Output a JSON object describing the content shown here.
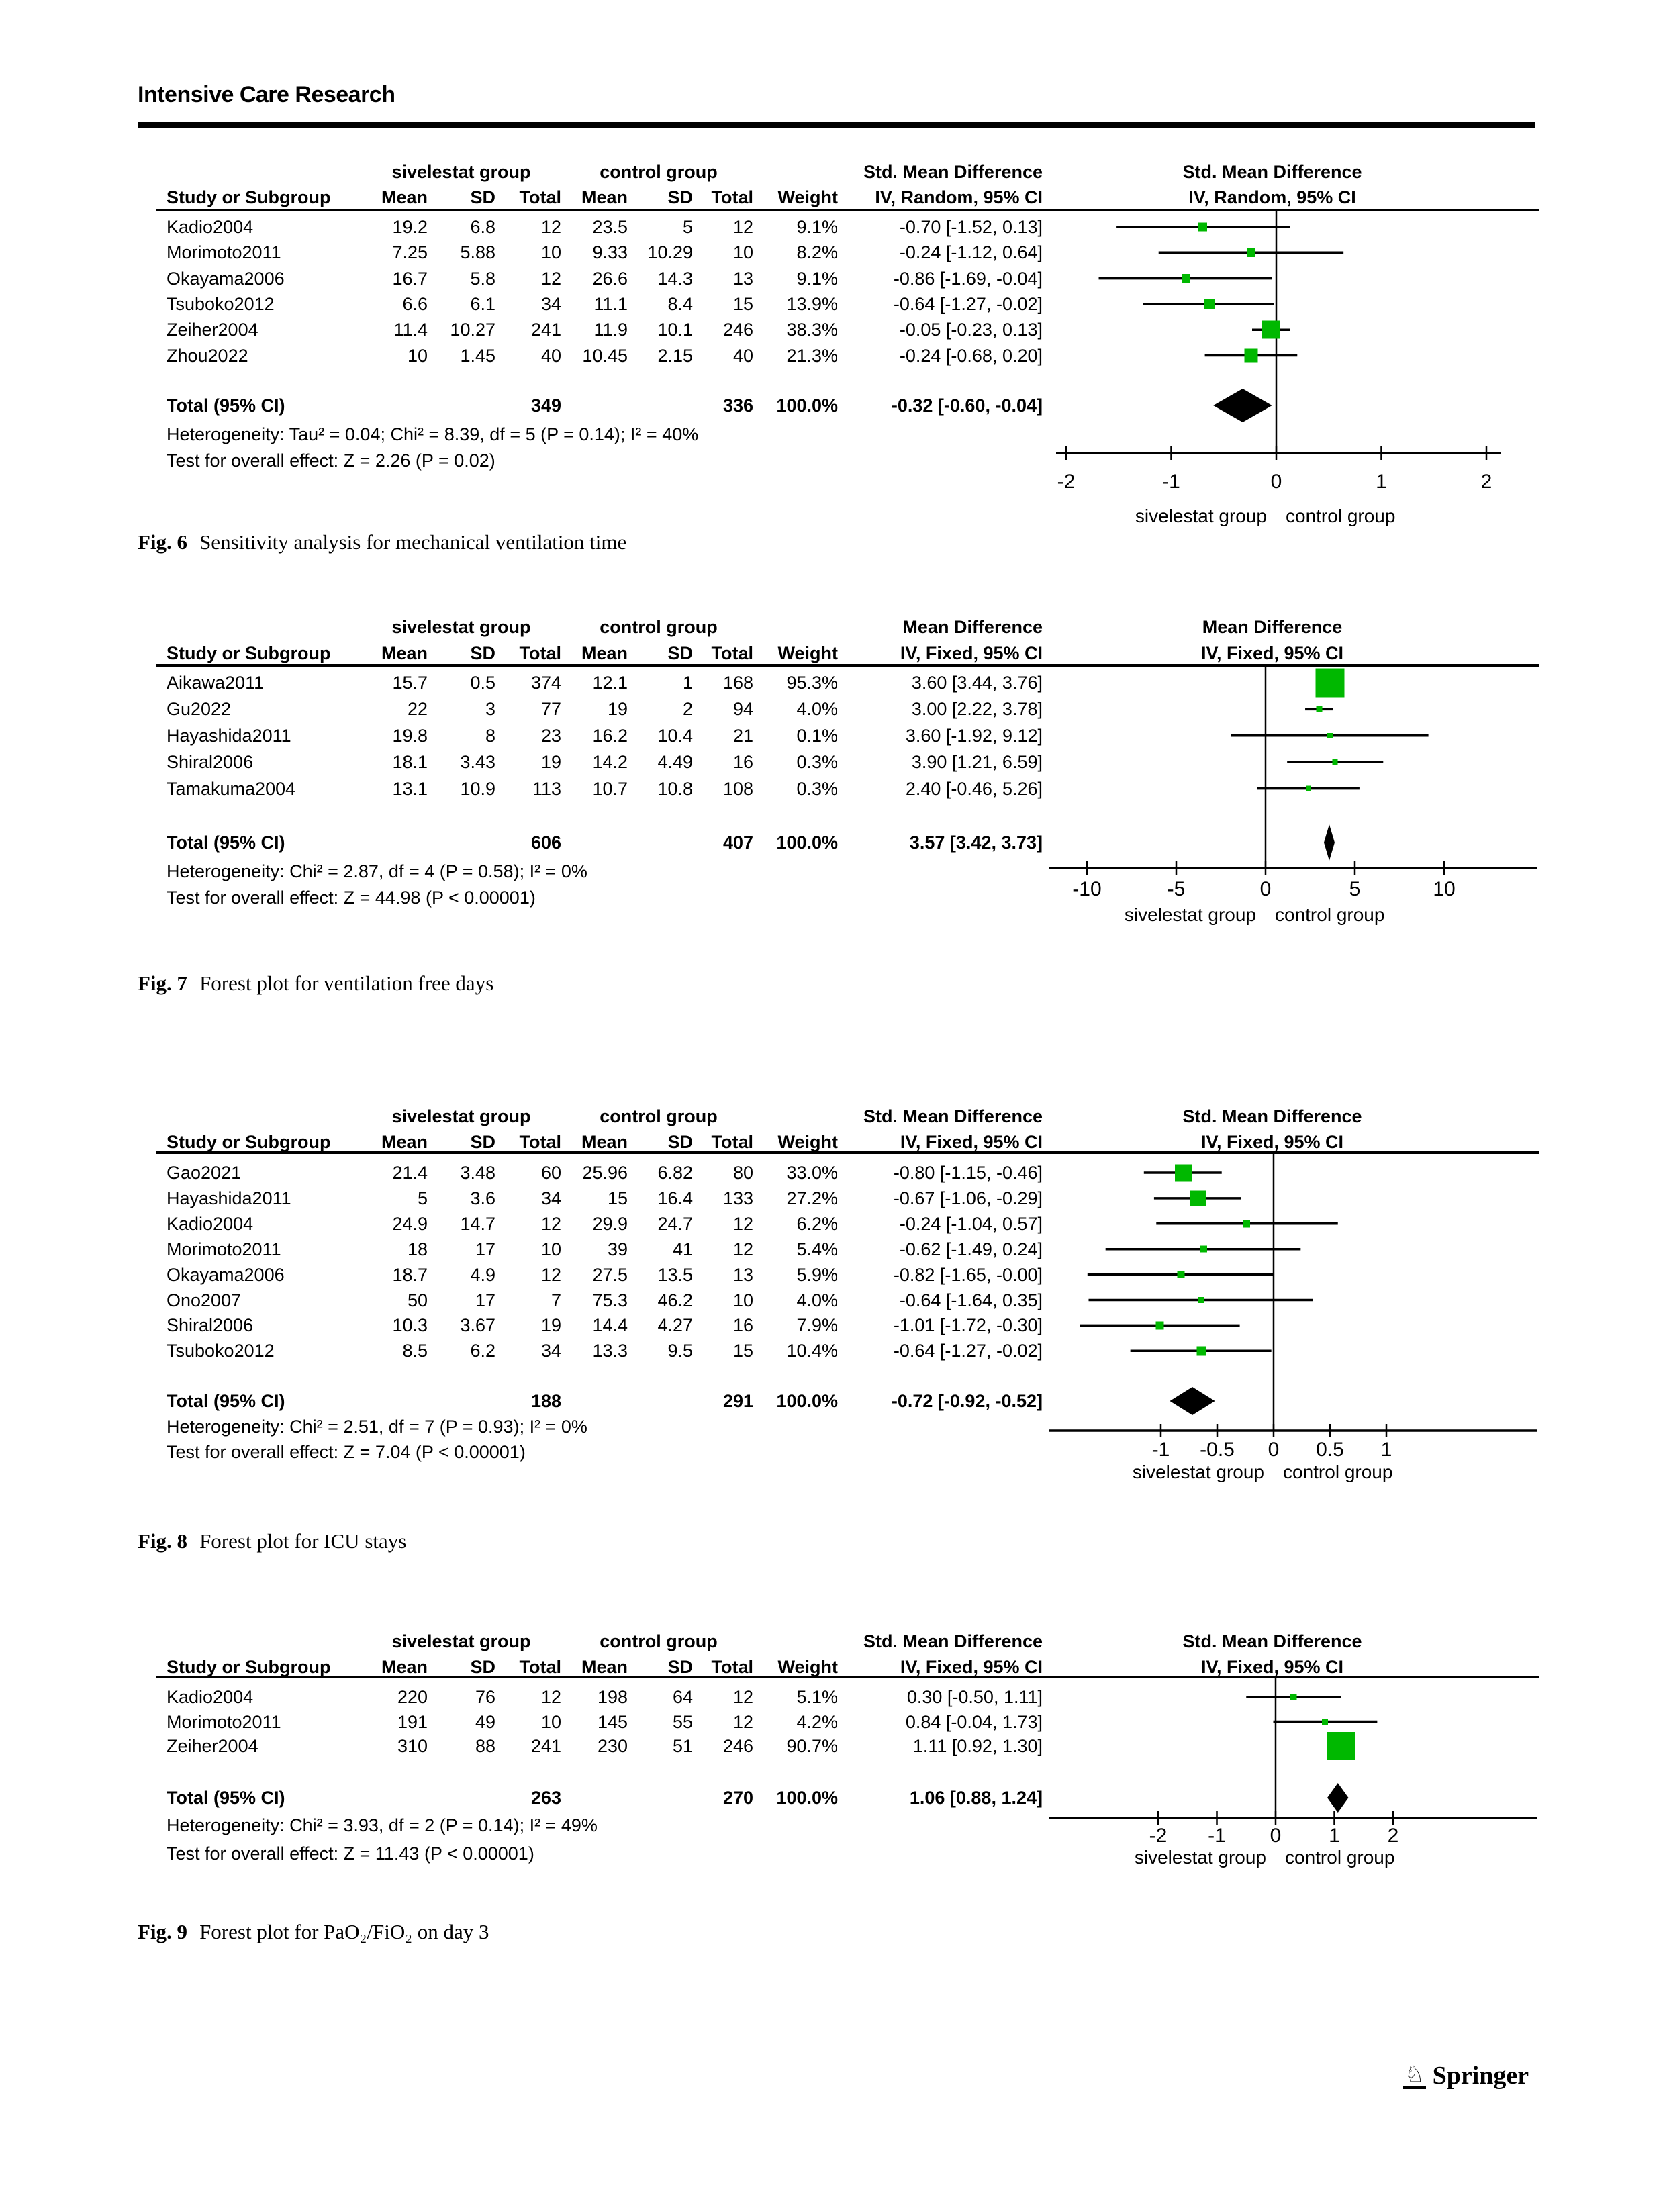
{
  "page": {
    "header_title": "Intensive Care Research",
    "publisher": "Springer",
    "logo_icon": "chess-knight-icon"
  },
  "table_headers": {
    "study": "Study or Subgroup",
    "mean": "Mean",
    "sd": "SD",
    "total": "Total",
    "weight": "Weight"
  },
  "figures": [
    {
      "caption_label": "Fig. 6",
      "caption_text": "Sensitivity analysis for mechanical ventilation time",
      "group1_header": "sivelestat group",
      "group2_header": "control group",
      "effect_header": "Std. Mean Difference",
      "method_header": "IV, Random, 95% CI",
      "footer_left_label": "sivelestat group",
      "footer_right_label": "control group",
      "chart_type": "forest",
      "axis_ticks": [
        -2,
        -1,
        0,
        1,
        2
      ],
      "axis_labels": [
        "-2",
        "-1",
        "0",
        "1",
        "2"
      ],
      "marker_color": "#00b800",
      "studies": [
        {
          "study": "Kadio2004",
          "cells": [
            "19.2",
            "6.8",
            "12",
            "23.5",
            "5",
            "12",
            "9.1%",
            "-0.70 [-1.52, 0.13]"
          ],
          "est": -0.7,
          "lo": -1.52,
          "hi": 0.13,
          "weight": 9.1
        },
        {
          "study": "Morimoto2011",
          "cells": [
            "7.25",
            "5.88",
            "10",
            "9.33",
            "10.29",
            "10",
            "8.2%",
            "-0.24 [-1.12, 0.64]"
          ],
          "est": -0.24,
          "lo": -1.12,
          "hi": 0.64,
          "weight": 8.2
        },
        {
          "study": "Okayama2006",
          "cells": [
            "16.7",
            "5.8",
            "12",
            "26.6",
            "14.3",
            "13",
            "9.1%",
            "-0.86 [-1.69, -0.04]"
          ],
          "est": -0.86,
          "lo": -1.69,
          "hi": -0.04,
          "weight": 9.1
        },
        {
          "study": "Tsuboko2012",
          "cells": [
            "6.6",
            "6.1",
            "34",
            "11.1",
            "8.4",
            "15",
            "13.9%",
            "-0.64 [-1.27, -0.02]"
          ],
          "est": -0.64,
          "lo": -1.27,
          "hi": -0.02,
          "weight": 13.9
        },
        {
          "study": "Zeiher2004",
          "cells": [
            "11.4",
            "10.27",
            "241",
            "11.9",
            "10.1",
            "246",
            "38.3%",
            "-0.05 [-0.23, 0.13]"
          ],
          "est": -0.05,
          "lo": -0.23,
          "hi": 0.13,
          "weight": 38.3
        },
        {
          "study": "Zhou2022",
          "cells": [
            "10",
            "1.45",
            "40",
            "10.45",
            "2.15",
            "40",
            "21.3%",
            "-0.24 [-0.68, 0.20]"
          ],
          "est": -0.24,
          "lo": -0.68,
          "hi": 0.2,
          "weight": 21.3
        }
      ],
      "total_row": {
        "label": "Total (95% CI)",
        "total1": "349",
        "total2": "336",
        "weight": "100.0%",
        "ci": "-0.32 [-0.60, -0.04]",
        "est": -0.32,
        "lo": -0.6,
        "hi": -0.04
      },
      "heterogeneity": "Heterogeneity: Tau² = 0.04; Chi² = 8.39, df = 5 (P = 0.14); I² = 40%",
      "overall": "Test for overall effect: Z = 2.26 (P = 0.02)"
    },
    {
      "caption_label": "Fig. 7",
      "caption_text": "Forest plot for ventilation free days",
      "group1_header": "sivelestat group",
      "group2_header": "control group",
      "effect_header": "Mean Difference",
      "method_header": "IV, Fixed, 95% CI",
      "footer_left_label": "sivelestat group",
      "footer_right_label": "control group",
      "chart_type": "forest",
      "axis_ticks": [
        -10,
        -5,
        0,
        5,
        10
      ],
      "axis_labels": [
        "-10",
        "-5",
        "0",
        "5",
        "10"
      ],
      "marker_color": "#00b800",
      "studies": [
        {
          "study": "Aikawa2011",
          "cells": [
            "15.7",
            "0.5",
            "374",
            "12.1",
            "1",
            "168",
            "95.3%",
            "3.60 [3.44, 3.76]"
          ],
          "est": 3.6,
          "lo": 3.44,
          "hi": 3.76,
          "weight": 95.3
        },
        {
          "study": "Gu2022",
          "cells": [
            "22",
            "3",
            "77",
            "19",
            "2",
            "94",
            "4.0%",
            "3.00 [2.22, 3.78]"
          ],
          "est": 3.0,
          "lo": 2.22,
          "hi": 3.78,
          "weight": 4.0
        },
        {
          "study": "Hayashida2011",
          "cells": [
            "19.8",
            "8",
            "23",
            "16.2",
            "10.4",
            "21",
            "0.1%",
            "3.60 [-1.92, 9.12]"
          ],
          "est": 3.6,
          "lo": -1.92,
          "hi": 9.12,
          "weight": 0.1
        },
        {
          "study": "Shiral2006",
          "cells": [
            "18.1",
            "3.43",
            "19",
            "14.2",
            "4.49",
            "16",
            "0.3%",
            "3.90 [1.21, 6.59]"
          ],
          "est": 3.9,
          "lo": 1.21,
          "hi": 6.59,
          "weight": 0.3
        },
        {
          "study": "Tamakuma2004",
          "cells": [
            "13.1",
            "10.9",
            "113",
            "10.7",
            "10.8",
            "108",
            "0.3%",
            "2.40 [-0.46, 5.26]"
          ],
          "est": 2.4,
          "lo": -0.46,
          "hi": 5.26,
          "weight": 0.3
        }
      ],
      "total_row": {
        "label": "Total (95% CI)",
        "total1": "606",
        "total2": "407",
        "weight": "100.0%",
        "ci": "3.57 [3.42, 3.73]",
        "est": 3.57,
        "lo": 3.42,
        "hi": 3.73
      },
      "heterogeneity": "Heterogeneity: Chi² = 2.87, df = 4 (P = 0.58); I² = 0%",
      "overall": "Test for overall effect: Z = 44.98 (P < 0.00001)"
    },
    {
      "caption_label": "Fig. 8",
      "caption_text": "Forest plot for ICU stays",
      "group1_header": "sivelestat group",
      "group2_header": "control group",
      "effect_header": "Std. Mean Difference",
      "method_header": "IV, Fixed, 95% CI",
      "footer_left_label": "sivelestat group",
      "footer_right_label": "control group",
      "chart_type": "forest",
      "axis_ticks": [
        -1,
        -0.5,
        0,
        0.5,
        1
      ],
      "axis_labels": [
        "-1",
        "-0.5",
        "0",
        "0.5",
        "1"
      ],
      "marker_color": "#00b800",
      "studies": [
        {
          "study": "Gao2021",
          "cells": [
            "21.4",
            "3.48",
            "60",
            "25.96",
            "6.82",
            "80",
            "33.0%",
            "-0.80 [-1.15, -0.46]"
          ],
          "est": -0.8,
          "lo": -1.15,
          "hi": -0.46,
          "weight": 33.0
        },
        {
          "study": "Hayashida2011",
          "cells": [
            "5",
            "3.6",
            "34",
            "15",
            "16.4",
            "133",
            "27.2%",
            "-0.67 [-1.06, -0.29]"
          ],
          "est": -0.67,
          "lo": -1.06,
          "hi": -0.29,
          "weight": 27.2
        },
        {
          "study": "Kadio2004",
          "cells": [
            "24.9",
            "14.7",
            "12",
            "29.9",
            "24.7",
            "12",
            "6.2%",
            "-0.24 [-1.04, 0.57]"
          ],
          "est": -0.24,
          "lo": -1.04,
          "hi": 0.57,
          "weight": 6.2
        },
        {
          "study": "Morimoto2011",
          "cells": [
            "18",
            "17",
            "10",
            "39",
            "41",
            "12",
            "5.4%",
            "-0.62 [-1.49, 0.24]"
          ],
          "est": -0.62,
          "lo": -1.49,
          "hi": 0.24,
          "weight": 5.4
        },
        {
          "study": "Okayama2006",
          "cells": [
            "18.7",
            "4.9",
            "12",
            "27.5",
            "13.5",
            "13",
            "5.9%",
            "-0.82 [-1.65, -0.00]"
          ],
          "est": -0.82,
          "lo": -1.65,
          "hi": 0.0,
          "weight": 5.9
        },
        {
          "study": "Ono2007",
          "cells": [
            "50",
            "17",
            "7",
            "75.3",
            "46.2",
            "10",
            "4.0%",
            "-0.64 [-1.64, 0.35]"
          ],
          "est": -0.64,
          "lo": -1.64,
          "hi": 0.35,
          "weight": 4.0
        },
        {
          "study": "Shiral2006",
          "cells": [
            "10.3",
            "3.67",
            "19",
            "14.4",
            "4.27",
            "16",
            "7.9%",
            "-1.01 [-1.72, -0.30]"
          ],
          "est": -1.01,
          "lo": -1.72,
          "hi": -0.3,
          "weight": 7.9
        },
        {
          "study": "Tsuboko2012",
          "cells": [
            "8.5",
            "6.2",
            "34",
            "13.3",
            "9.5",
            "15",
            "10.4%",
            "-0.64 [-1.27, -0.02]"
          ],
          "est": -0.64,
          "lo": -1.27,
          "hi": -0.02,
          "weight": 10.4
        }
      ],
      "total_row": {
        "label": "Total (95% CI)",
        "total1": "188",
        "total2": "291",
        "weight": "100.0%",
        "ci": "-0.72 [-0.92, -0.52]",
        "est": -0.72,
        "lo": -0.92,
        "hi": -0.52
      },
      "heterogeneity": "Heterogeneity: Chi² = 2.51, df = 7 (P = 0.93); I² = 0%",
      "overall": "Test for overall effect: Z = 7.04 (P < 0.00001)"
    },
    {
      "caption_label": "Fig. 9",
      "caption_text": "Forest plot for PaO₂/FiO₂ on day 3",
      "group1_header": "sivelestat group",
      "group2_header": "control group",
      "effect_header": "Std. Mean Difference",
      "method_header": "IV, Fixed, 95% CI",
      "footer_left_label": "sivelestat group",
      "footer_right_label": "control group",
      "chart_type": "forest",
      "axis_ticks": [
        -2,
        -1,
        0,
        1,
        2
      ],
      "axis_labels": [
        "-2",
        "-1",
        "0",
        "1",
        "2"
      ],
      "marker_color": "#00b800",
      "studies": [
        {
          "study": "Kadio2004",
          "cells": [
            "220",
            "76",
            "12",
            "198",
            "64",
            "12",
            "5.1%",
            "0.30 [-0.50, 1.11]"
          ],
          "est": 0.3,
          "lo": -0.5,
          "hi": 1.11,
          "weight": 5.1
        },
        {
          "study": "Morimoto2011",
          "cells": [
            "191",
            "49",
            "10",
            "145",
            "55",
            "12",
            "4.2%",
            "0.84 [-0.04, 1.73]"
          ],
          "est": 0.84,
          "lo": -0.04,
          "hi": 1.73,
          "weight": 4.2
        },
        {
          "study": "Zeiher2004",
          "cells": [
            "310",
            "88",
            "241",
            "230",
            "51",
            "246",
            "90.7%",
            "1.11 [0.92, 1.30]"
          ],
          "est": 1.11,
          "lo": 0.92,
          "hi": 1.3,
          "weight": 90.7
        }
      ],
      "total_row": {
        "label": "Total (95% CI)",
        "total1": "263",
        "total2": "270",
        "weight": "100.0%",
        "ci": "1.06 [0.88, 1.24]",
        "est": 1.06,
        "lo": 0.88,
        "hi": 1.24
      },
      "heterogeneity": "Heterogeneity: Chi² = 3.93, df = 2 (P = 0.14); I² = 49%",
      "overall": "Test for overall effect: Z = 11.43 (P < 0.00001)"
    }
  ]
}
